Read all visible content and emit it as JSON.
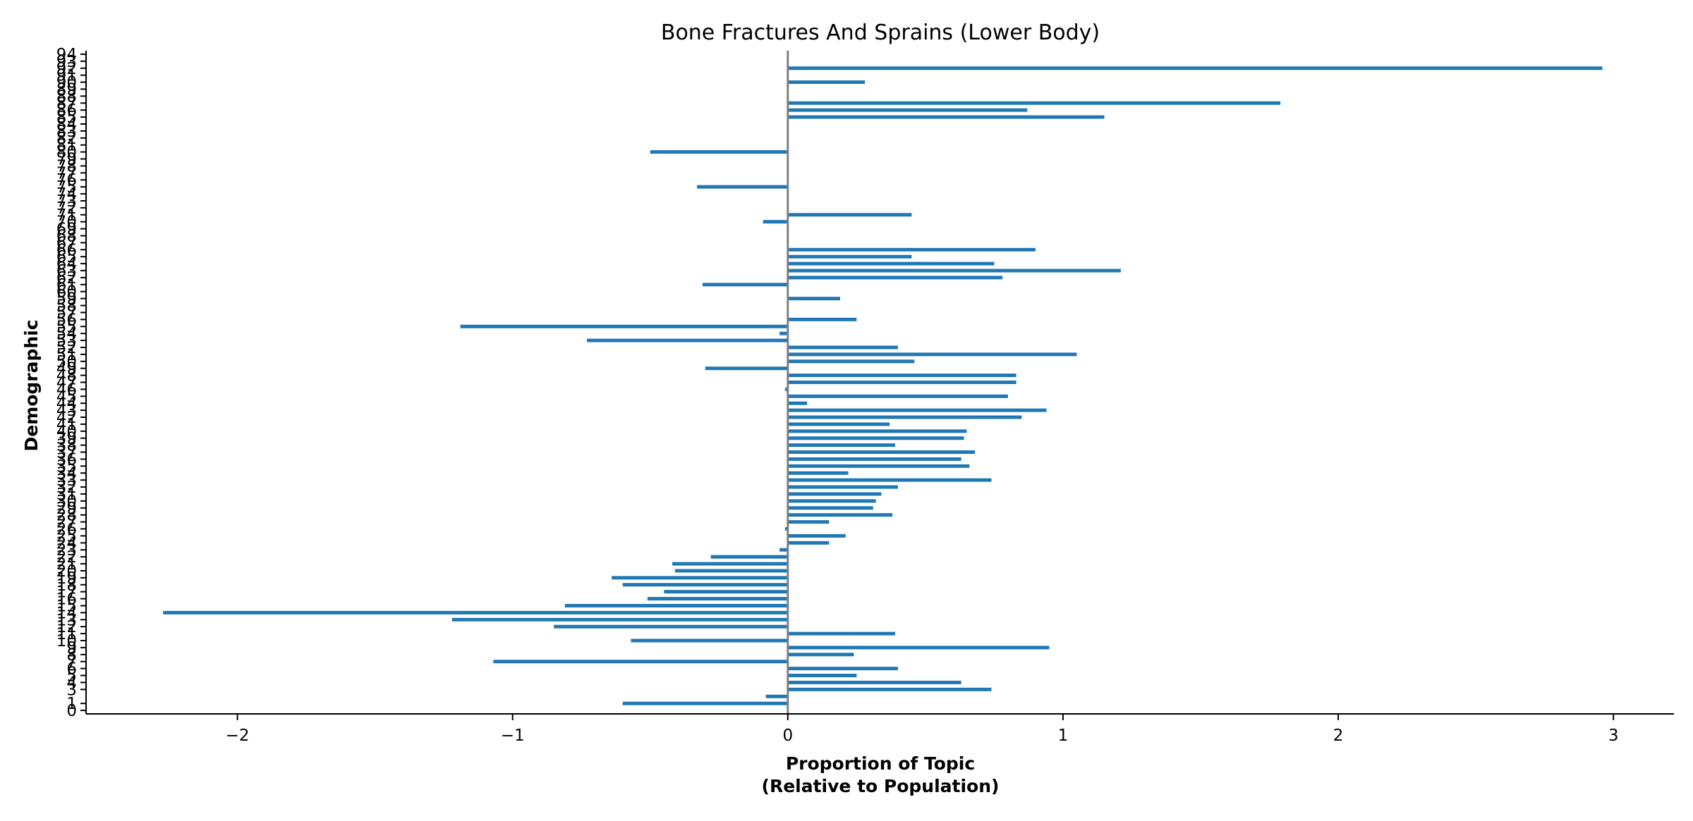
{
  "chart_data": {
    "type": "bar",
    "orientation": "horizontal",
    "title": "Bone Fractures And Sprains (Lower Body)",
    "xlabel": [
      "Proportion of Topic",
      "(Relative to Population)"
    ],
    "ylabel": "Demographic",
    "xlim": [
      -2.55,
      3.22
    ],
    "xticks": [
      -2,
      -1,
      0,
      1,
      2,
      3
    ],
    "xtick_labels": [
      "−2",
      "−1",
      "0",
      "1",
      "2",
      "3"
    ],
    "ylim": [
      -0.5,
      94.5
    ],
    "yticks": [
      0,
      1,
      3,
      4,
      5,
      6,
      7,
      8,
      9,
      10,
      11,
      12,
      13,
      14,
      15,
      16,
      17,
      18,
      19,
      20,
      21,
      22,
      23,
      24,
      25,
      26,
      27,
      28,
      29,
      30,
      31,
      32,
      33,
      34,
      35,
      36,
      37,
      38,
      39,
      40,
      41,
      42,
      43,
      44,
      45,
      46,
      47,
      48,
      49,
      50,
      51,
      52,
      53,
      54,
      55,
      56,
      57,
      58,
      59,
      60,
      61,
      62,
      63,
      64,
      65,
      66,
      67,
      68,
      69,
      70,
      71,
      72,
      73,
      74,
      75,
      76,
      77,
      78,
      79,
      80,
      81,
      82,
      83,
      84,
      85,
      86,
      87,
      88,
      89,
      90,
      91,
      92,
      93,
      94
    ],
    "zero_line_color": "#808080",
    "bar_color": "#1f77b4",
    "grid": false,
    "legend": "none",
    "bars": [
      {
        "y": 1,
        "value": -0.6
      },
      {
        "y": 2,
        "value": -0.08
      },
      {
        "y": 3,
        "value": 0.74
      },
      {
        "y": 4,
        "value": 0.63
      },
      {
        "y": 5,
        "value": 0.25
      },
      {
        "y": 6,
        "value": 0.4
      },
      {
        "y": 7,
        "value": -1.07
      },
      {
        "y": 8,
        "value": 0.24
      },
      {
        "y": 9,
        "value": 0.95
      },
      {
        "y": 10,
        "value": -0.57
      },
      {
        "y": 11,
        "value": 0.39
      },
      {
        "y": 12,
        "value": -0.85
      },
      {
        "y": 13,
        "value": -1.22
      },
      {
        "y": 14,
        "value": -2.27
      },
      {
        "y": 15,
        "value": -0.81
      },
      {
        "y": 16,
        "value": -0.51
      },
      {
        "y": 17,
        "value": -0.45
      },
      {
        "y": 18,
        "value": -0.6
      },
      {
        "y": 19,
        "value": -0.64
      },
      {
        "y": 20,
        "value": -0.41
      },
      {
        "y": 21,
        "value": -0.42
      },
      {
        "y": 22,
        "value": -0.28
      },
      {
        "y": 23,
        "value": -0.03
      },
      {
        "y": 24,
        "value": 0.15
      },
      {
        "y": 25,
        "value": 0.21
      },
      {
        "y": 26,
        "value": -0.01
      },
      {
        "y": 27,
        "value": 0.15
      },
      {
        "y": 28,
        "value": 0.38
      },
      {
        "y": 29,
        "value": 0.31
      },
      {
        "y": 30,
        "value": 0.32
      },
      {
        "y": 31,
        "value": 0.34
      },
      {
        "y": 32,
        "value": 0.4
      },
      {
        "y": 33,
        "value": 0.74
      },
      {
        "y": 34,
        "value": 0.22
      },
      {
        "y": 35,
        "value": 0.66
      },
      {
        "y": 36,
        "value": 0.63
      },
      {
        "y": 37,
        "value": 0.68
      },
      {
        "y": 38,
        "value": 0.39
      },
      {
        "y": 39,
        "value": 0.64
      },
      {
        "y": 40,
        "value": 0.65
      },
      {
        "y": 41,
        "value": 0.37
      },
      {
        "y": 42,
        "value": 0.85
      },
      {
        "y": 43,
        "value": 0.94
      },
      {
        "y": 44,
        "value": 0.07
      },
      {
        "y": 45,
        "value": 0.8
      },
      {
        "y": 46,
        "value": -0.01
      },
      {
        "y": 47,
        "value": 0.83
      },
      {
        "y": 48,
        "value": 0.83
      },
      {
        "y": 49,
        "value": -0.3
      },
      {
        "y": 50,
        "value": 0.46
      },
      {
        "y": 51,
        "value": 1.05
      },
      {
        "y": 52,
        "value": 0.4
      },
      {
        "y": 53,
        "value": -0.73
      },
      {
        "y": 54,
        "value": -0.03
      },
      {
        "y": 55,
        "value": -1.19
      },
      {
        "y": 56,
        "value": 0.25
      },
      {
        "y": 59,
        "value": 0.19
      },
      {
        "y": 61,
        "value": -0.31
      },
      {
        "y": 62,
        "value": 0.78
      },
      {
        "y": 63,
        "value": 1.21
      },
      {
        "y": 64,
        "value": 0.75
      },
      {
        "y": 65,
        "value": 0.45
      },
      {
        "y": 66,
        "value": 0.9
      },
      {
        "y": 70,
        "value": -0.09
      },
      {
        "y": 71,
        "value": 0.45
      },
      {
        "y": 75,
        "value": -0.33
      },
      {
        "y": 80,
        "value": -0.5
      },
      {
        "y": 85,
        "value": 1.15
      },
      {
        "y": 86,
        "value": 0.87
      },
      {
        "y": 87,
        "value": 1.79
      },
      {
        "y": 90,
        "value": 0.28
      },
      {
        "y": 92,
        "value": 2.96
      }
    ]
  }
}
